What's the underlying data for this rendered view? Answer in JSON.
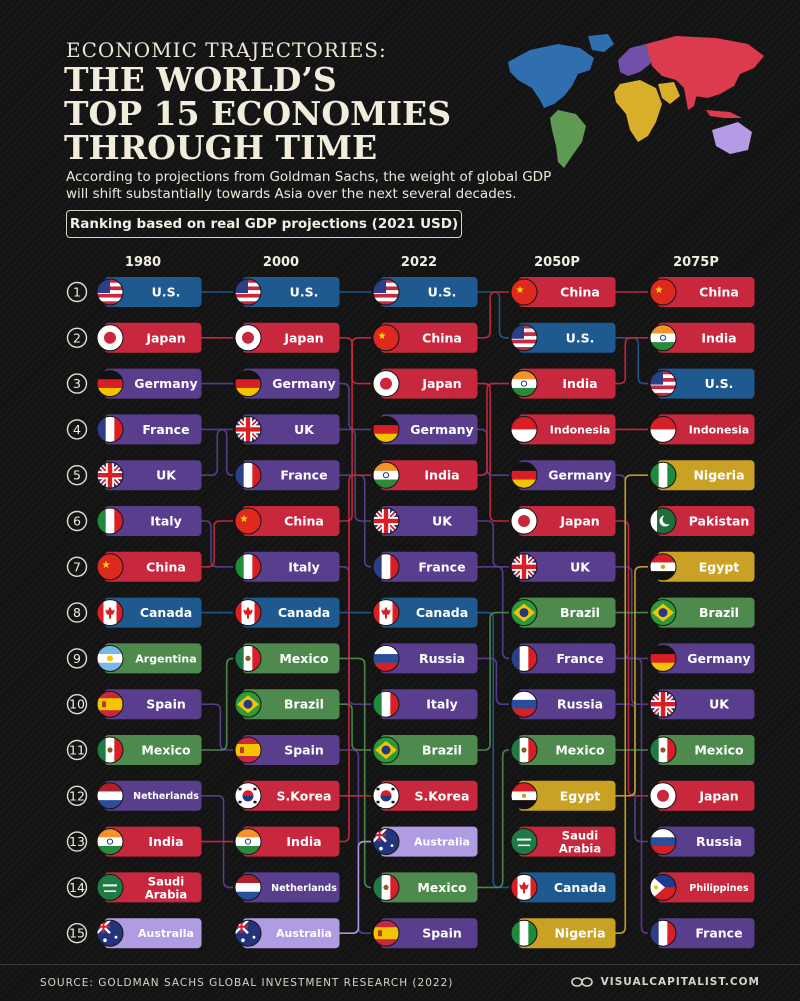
{
  "header": {
    "kicker": "ECONOMIC TRAJECTORIES:",
    "title_lines": [
      "THE WORLD’S",
      "TOP 15 ECONOMIES",
      "THROUGH TIME"
    ],
    "subtitle_lines": [
      "According to projections from Goldman Sachs, the weight of global GDP",
      "will shift substantially towards Asia over the next several decades."
    ],
    "ranking_note": "Ranking based on real GDP projections (2021 USD)"
  },
  "footer": {
    "source": "SOURCE: GOLDMAN SACHS GLOBAL INVESTMENT RESEARCH (2022)",
    "brand": "VISUALCAPITALIST.COM"
  },
  "colors": {
    "background": "#141414",
    "text": "#f2eee2",
    "north_america": "#1e5a90",
    "asia": "#c8283e",
    "europe": "#5a3e8e",
    "latin_america": "#4e8a4e",
    "africa": "#c9a125",
    "oceania": "#b09ce2"
  },
  "map_regions": [
    {
      "name": "north-america",
      "color": "#2f6fb0"
    },
    {
      "name": "south-america",
      "color": "#5e9a54"
    },
    {
      "name": "europe",
      "color": "#7050a8"
    },
    {
      "name": "africa",
      "color": "#d8ae2a"
    },
    {
      "name": "middle-east",
      "color": "#d8ae2a"
    },
    {
      "name": "asia",
      "color": "#dc3a4e"
    },
    {
      "name": "oceania",
      "color": "#b59ae6"
    }
  ],
  "chart_data": {
    "type": "table",
    "title": "THE WORLD’S TOP 15 ECONOMIES THROUGH TIME",
    "ranks": [
      1,
      2,
      3,
      4,
      5,
      6,
      7,
      8,
      9,
      10,
      11,
      12,
      13,
      14,
      15
    ],
    "columns": [
      {
        "year": "1980",
        "countries": [
          "U.S.",
          "Japan",
          "Germany",
          "France",
          "UK",
          "Italy",
          "China",
          "Canada",
          "Argentina",
          "Spain",
          "Mexico",
          "Netherlands",
          "India",
          "Saudi Arabia",
          "Austraila"
        ]
      },
      {
        "year": "2000",
        "countries": [
          "U.S.",
          "Japan",
          "Germany",
          "UK",
          "France",
          "China",
          "Italy",
          "Canada",
          "Mexico",
          "Brazil",
          "Spain",
          "S.Korea",
          "India",
          "Netherlands",
          "Australia"
        ]
      },
      {
        "year": "2022",
        "countries": [
          "U.S.",
          "China",
          "Japan",
          "Germany",
          "India",
          "UK",
          "France",
          "Canada",
          "Russia",
          "Italy",
          "Brazil",
          "S.Korea",
          "Australia",
          "Mexico",
          "Spain"
        ]
      },
      {
        "year": "2050P",
        "countries": [
          "China",
          "U.S.",
          "India",
          "Indonesia",
          "Germany",
          "Japan",
          "UK",
          "Brazil",
          "France",
          "Russia",
          "Mexico",
          "Egypt",
          "Saudi Arabia",
          "Canada",
          "Nigeria"
        ]
      },
      {
        "year": "2075P",
        "countries": [
          "China",
          "India",
          "U.S.",
          "Indonesia",
          "Nigeria",
          "Pakistan",
          "Egypt",
          "Brazil",
          "Germany",
          "UK",
          "Mexico",
          "Japan",
          "Russia",
          "Philippines",
          "France"
        ]
      }
    ],
    "country_region": {
      "U.S.": "north_america",
      "Canada": "north_america",
      "Japan": "asia",
      "China": "asia",
      "India": "asia",
      "Indonesia": "asia",
      "S.Korea": "asia",
      "Pakistan": "asia",
      "Philippines": "asia",
      "Saudi Arabia": "asia",
      "Germany": "europe",
      "France": "europe",
      "UK": "europe",
      "Italy": "europe",
      "Spain": "europe",
      "Netherlands": "europe",
      "Russia": "europe",
      "Argentina": "latin_america",
      "Mexico": "latin_america",
      "Brazil": "latin_america",
      "Egypt": "africa",
      "Nigeria": "africa",
      "Australia": "oceania",
      "Austraila": "oceania"
    },
    "country_flag": {
      "U.S.": "us",
      "Japan": "jp",
      "Germany": "de",
      "France": "fr",
      "UK": "uk",
      "Italy": "it",
      "China": "cn",
      "Canada": "ca",
      "Argentina": "ar",
      "Spain": "es",
      "Mexico": "mx",
      "Netherlands": "nl",
      "India": "in",
      "Saudi Arabia": "sa",
      "Austraila": "au",
      "Australia": "au",
      "Brazil": "br",
      "S.Korea": "kr",
      "Russia": "ru",
      "Indonesia": "id",
      "Egypt": "eg",
      "Nigeria": "ng",
      "Pakistan": "pk",
      "Philippines": "ph"
    }
  }
}
